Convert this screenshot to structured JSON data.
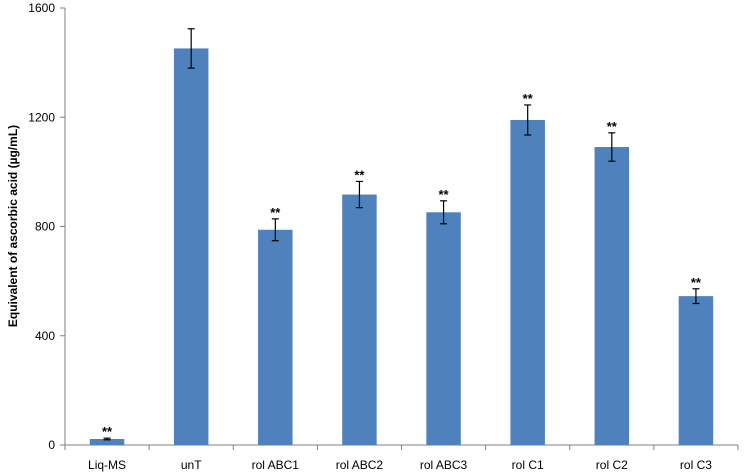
{
  "chart_data": {
    "type": "bar",
    "categories": [
      "Liq-MS",
      "unT",
      "rol ABC1",
      "rol ABC2",
      "rol ABC3",
      "rol C1",
      "rol C2",
      "rol C3"
    ],
    "values": [
      22,
      1452,
      788,
      917,
      852,
      1190,
      1091,
      545
    ],
    "errors": [
      3,
      72,
      40,
      48,
      42,
      55,
      52,
      27
    ],
    "annotations": [
      "**",
      "",
      "**",
      "**",
      "**",
      "**",
      "**",
      "**"
    ],
    "ylabel": "Equivalent of ascorbic acid (µg/mL)",
    "xlabel": "",
    "ylim": [
      0,
      1600
    ],
    "yticks": [
      0,
      400,
      800,
      1200,
      1600
    ],
    "grid": false,
    "bar_color": "#4f81bd"
  }
}
